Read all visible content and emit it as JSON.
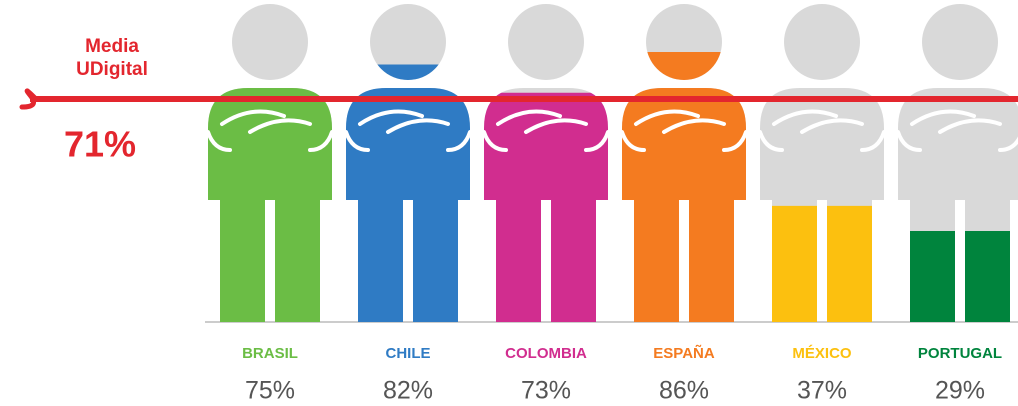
{
  "chart_data": {
    "type": "pictogram",
    "categories": [
      "BRASIL",
      "CHILE",
      "COLOMBIA",
      "ESPAÑA",
      "MÉXICO",
      "PORTUGAL"
    ],
    "values": [
      75,
      82,
      73,
      86,
      37,
      29
    ],
    "value_labels": [
      "75%",
      "82%",
      "73%",
      "86%",
      "37%",
      "29%"
    ],
    "colors": [
      "#6bbd45",
      "#2f7bc4",
      "#d12d8f",
      "#f47b20",
      "#fcc00f",
      "#00843d"
    ],
    "base_color": "#d9d9d9",
    "ylim": [
      0,
      100
    ],
    "reference": {
      "label": [
        "Media",
        "UDigital"
      ],
      "value": 71,
      "value_label": "71%",
      "color": "#e3262e"
    }
  }
}
